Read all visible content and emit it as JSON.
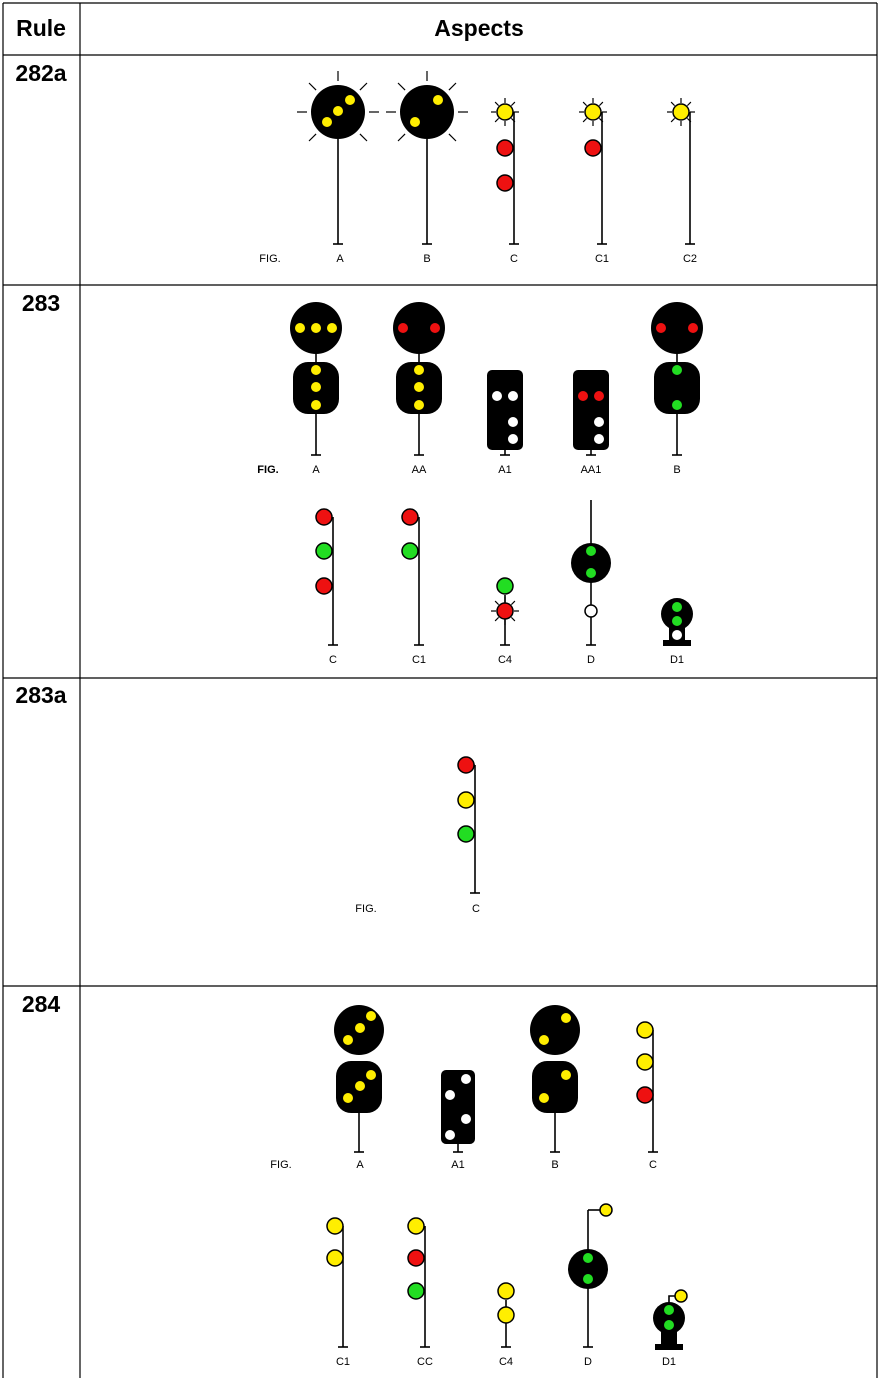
{
  "header": {
    "rule": "Rule",
    "aspects": "Aspects"
  },
  "rows": [
    {
      "rule": "282a",
      "fig": "FIG.",
      "aspects": [
        "A",
        "B",
        "C",
        "C1",
        "C2"
      ]
    },
    {
      "rule": "283",
      "fig": "FIG.",
      "aspects": [
        "A",
        "AA",
        "A1",
        "AA1",
        "B",
        "C",
        "C1",
        "C4",
        "D",
        "D1"
      ]
    },
    {
      "rule": "283a",
      "fig": "FIG.",
      "aspects": [
        "C"
      ]
    },
    {
      "rule": "284",
      "fig": "FIG.",
      "aspects": [
        "A",
        "A1",
        "B",
        "C",
        "C1",
        "CC",
        "C4",
        "D",
        "D1"
      ]
    }
  ]
}
